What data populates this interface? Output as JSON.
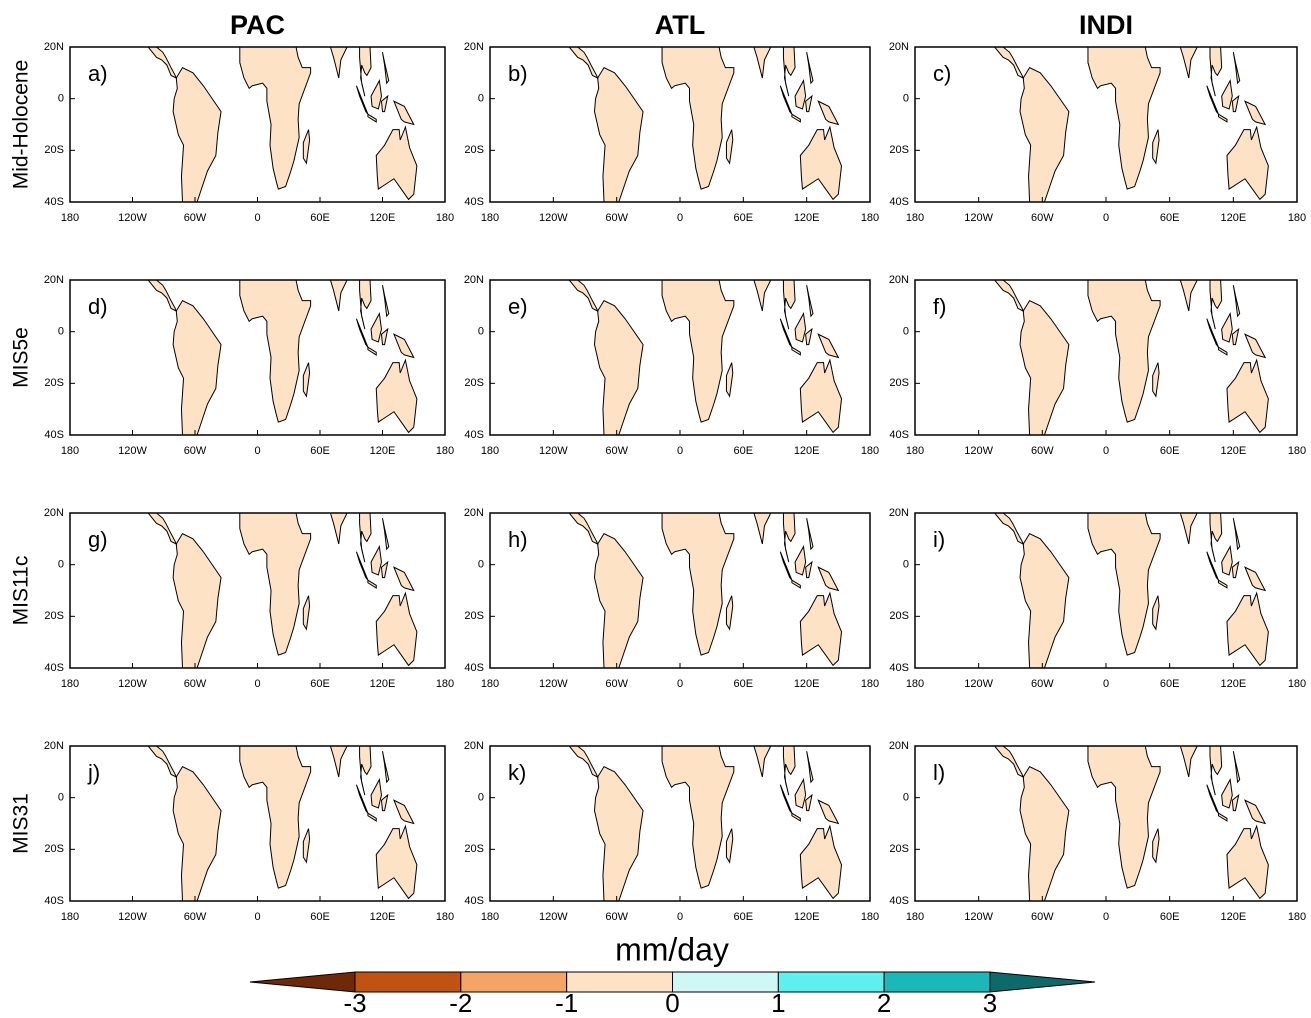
{
  "columns": [
    "PAC",
    "ATL",
    "INDI"
  ],
  "rows": [
    "Mid-Holocene",
    "MIS5e",
    "MIS11c",
    "MIS31"
  ],
  "panels": [
    "a)",
    "b)",
    "c)",
    "d)",
    "e)",
    "f)",
    "g)",
    "h)",
    "i)",
    "j)",
    "k)",
    "l)"
  ],
  "lat_ticks": [
    {
      "value": 20,
      "label": "20N"
    },
    0,
    {
      "value": -20,
      "label": "20S"
    },
    {
      "value": -40,
      "label": "40S"
    }
  ],
  "lon_ticks": [
    {
      "value": -180,
      "label": "180"
    },
    {
      "value": -120,
      "label": "120W"
    },
    {
      "value": -60,
      "label": "60W"
    },
    0,
    {
      "value": 60,
      "label": "60E"
    },
    {
      "value": 120,
      "label": "120E"
    },
    {
      "value": 180,
      "label": "180"
    }
  ],
  "colorbar": {
    "label": "mm/day",
    "ticks": [
      -3,
      -2,
      -1,
      0,
      1,
      2,
      3
    ],
    "colors": [
      "#6e2a08",
      "#c0530f",
      "#f4a463",
      "#fde2c6",
      "#cff7f5",
      "#5ef0f0",
      "#1ab8b8",
      "#0c6a6a"
    ]
  }
}
